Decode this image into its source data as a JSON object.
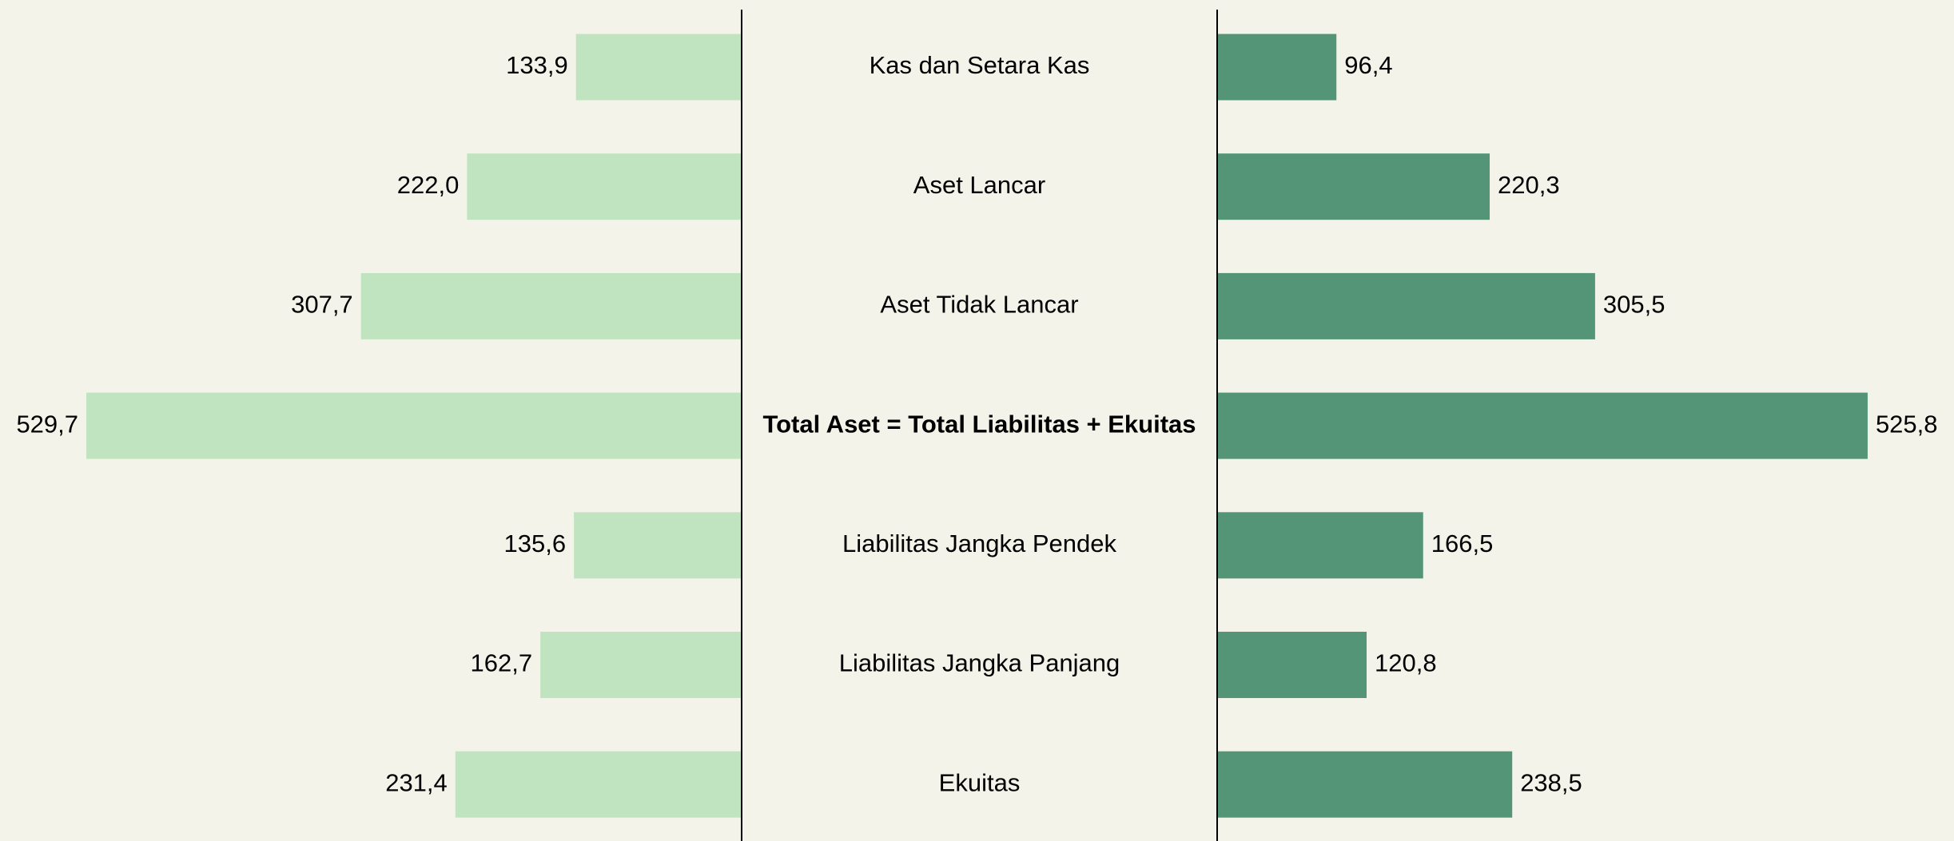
{
  "chart_data": {
    "type": "butterfly",
    "categories": [
      "Kas dan Setara Kas",
      "Aset Lancar",
      "Aset Tidak Lancar",
      "Total Aset = Total Liabilitas + Ekuitas",
      "Liabilitas Jangka Pendek",
      "Liabilitas Jangka Panjang",
      "Ekuitas"
    ],
    "series": [
      {
        "color": "#c1e4c0",
        "values": [
          133.9,
          222.0,
          307.7,
          529.7,
          135.6,
          162.7,
          231.4
        ],
        "value_labels": [
          "133,9",
          "222,0",
          "307,7",
          "529,7",
          "135,6",
          "162,7",
          "231,4"
        ]
      },
      {
        "color": "#559577",
        "values": [
          96.4,
          220.3,
          305.5,
          525.8,
          166.5,
          120.8,
          238.5
        ],
        "value_labels": [
          "96,4",
          "220,3",
          "305,5",
          "525,8",
          "166,5",
          "120,8",
          "238,5"
        ]
      }
    ]
  }
}
